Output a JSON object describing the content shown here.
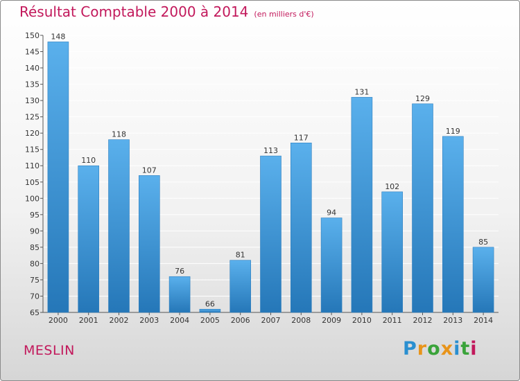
{
  "chart_title": "Résultat Comptable 2000 à 2014",
  "chart_unit": "(en milliers d'€)",
  "commune": "MESLIN",
  "brand": {
    "letters": [
      "P",
      "r",
      "o",
      "x",
      "i",
      "t",
      "i"
    ],
    "colors": [
      "#2a8fd0",
      "#e8941a",
      "#3aa33a",
      "#e8941a",
      "#2a8fd0",
      "#3aa33a",
      "#c2185b"
    ]
  },
  "colors": {
    "bar_light": "#5ab0ec",
    "bar_dark": "#2577b8",
    "title": "#c2185b",
    "grid": "#ffffff"
  },
  "chart_data": {
    "type": "bar",
    "title": "Résultat Comptable 2000 à 2014",
    "subtitle": "(en milliers d'€)",
    "categories": [
      "2000",
      "2001",
      "2002",
      "2003",
      "2004",
      "2005",
      "2006",
      "2007",
      "2008",
      "2009",
      "2010",
      "2011",
      "2012",
      "2013",
      "2014"
    ],
    "values": [
      148,
      110,
      118,
      107,
      76,
      66,
      81,
      113,
      117,
      94,
      131,
      102,
      129,
      119,
      85
    ],
    "ylim": [
      65,
      150
    ],
    "yticks": [
      65,
      70,
      75,
      80,
      85,
      90,
      95,
      100,
      105,
      110,
      115,
      120,
      125,
      130,
      135,
      140,
      145,
      150
    ],
    "grid": true,
    "data_labels": true
  }
}
